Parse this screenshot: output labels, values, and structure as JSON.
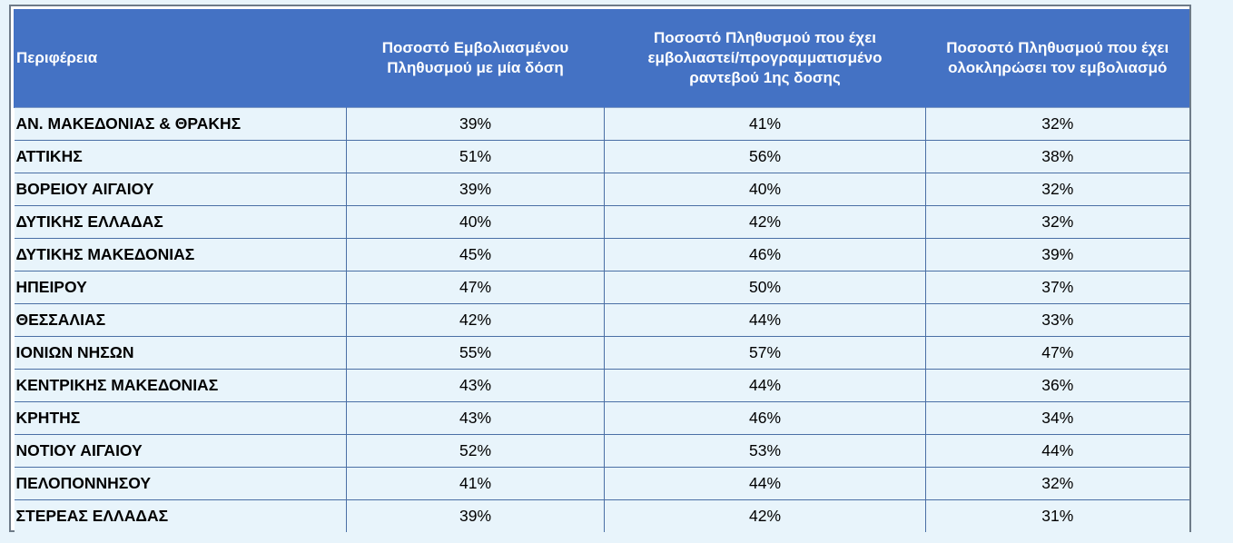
{
  "table": {
    "headers": [
      "Περιφέρεια",
      "Ποσοστό Εμβολιασμένου Πληθυσμού με μία δόση",
      "Ποσοστό Πληθυσμού  που έχει εμβολιαστεί/προγραμματισμένο ραντεβού 1ης δοσης",
      "Ποσοστό Πληθυσμού που έχει ολοκληρώσει τον εμβολιασμό"
    ],
    "rows": [
      [
        "ΑΝ. ΜΑΚΕΔΟΝΙΑΣ & ΘΡΑΚΗΣ",
        "39%",
        "41%",
        "32%"
      ],
      [
        "ΑΤΤΙΚΗΣ",
        "51%",
        "56%",
        "38%"
      ],
      [
        "ΒΟΡΕΙΟΥ ΑΙΓΑΙΟΥ",
        "39%",
        "40%",
        "32%"
      ],
      [
        "ΔΥΤΙΚΗΣ ΕΛΛΑΔΑΣ",
        "40%",
        "42%",
        "32%"
      ],
      [
        "ΔΥΤΙΚΗΣ ΜΑΚΕΔΟΝΙΑΣ",
        "45%",
        "46%",
        "39%"
      ],
      [
        "ΗΠΕΙΡΟΥ",
        "47%",
        "50%",
        "37%"
      ],
      [
        "ΘΕΣΣΑΛΙΑΣ",
        "42%",
        "44%",
        "33%"
      ],
      [
        "ΙΟΝΙΩΝ ΝΗΣΩΝ",
        "55%",
        "57%",
        "47%"
      ],
      [
        "ΚΕΝΤΡΙΚΗΣ ΜΑΚΕΔΟΝΙΑΣ",
        "43%",
        "44%",
        "36%"
      ],
      [
        "ΚΡΗΤΗΣ",
        "43%",
        "46%",
        "34%"
      ],
      [
        "ΝΟΤΙΟΥ ΑΙΓΑΙΟΥ",
        "52%",
        "53%",
        "44%"
      ],
      [
        "ΠΕΛΟΠΟΝΝΗΣΟΥ",
        "41%",
        "44%",
        "32%"
      ],
      [
        "ΣΤΕΡΕΑΣ ΕΛΛΑΔΑΣ",
        "39%",
        "42%",
        "31%"
      ]
    ]
  },
  "colors": {
    "header_bg": "#4472c4",
    "header_text": "#ffffff",
    "row_bg": "#e8f4fb",
    "grid": "#4a6fa5"
  }
}
